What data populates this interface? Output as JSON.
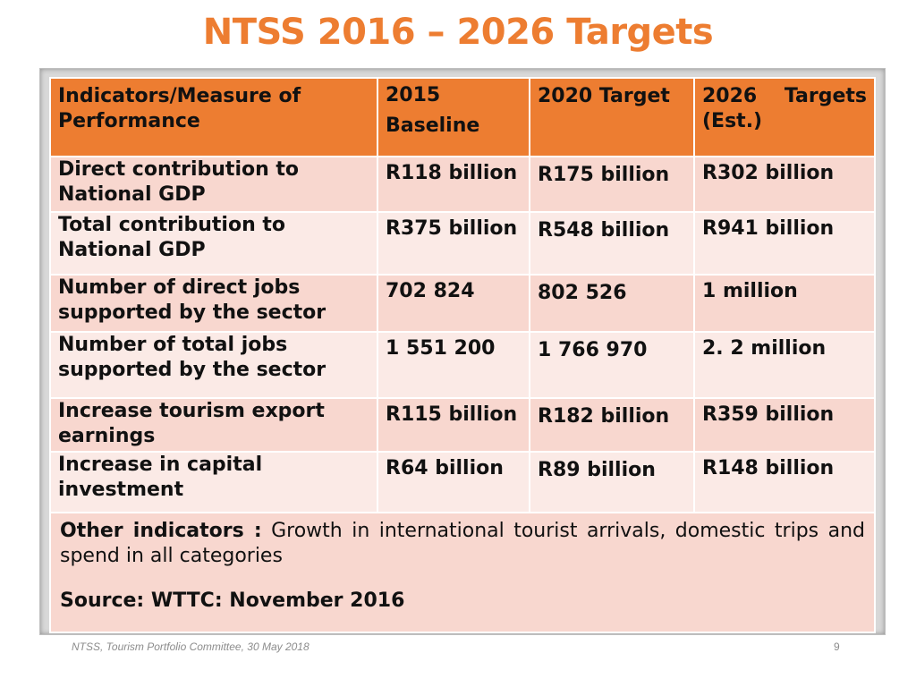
{
  "title": "NTSS 2016 – 2026 Targets",
  "colors": {
    "title": "#ED7D31",
    "header_bg": "#ED7D31",
    "row_dark": "#F8D7CF",
    "row_light": "#FBEAE6"
  },
  "table": {
    "headers": {
      "indicator": "Indicators/Measure of Performance",
      "baseline_line1": "2015",
      "baseline_line2": "Baseline",
      "target_2020": "2020 Target",
      "target_2026_line1": "2026 Targets",
      "target_2026_line2": "(Est.)"
    },
    "rows": [
      {
        "indicator": "Direct contribution to National GDP",
        "baseline": "R118 billion",
        "target_2020": "R175 billion",
        "target_2026": "R302 billion"
      },
      {
        "indicator": "Total contribution to National GDP",
        "baseline": "R375 billion",
        "target_2020": "R548 billion",
        "target_2026": "R941 billion"
      },
      {
        "indicator": "Number of direct jobs supported by the sector",
        "baseline": "702 824",
        "target_2020": "802 526",
        "target_2026": "1 million"
      },
      {
        "indicator": "Number of total jobs supported by the sector",
        "baseline": "1 551 200",
        "target_2020": "1 766 970",
        "target_2026": "2. 2 million"
      },
      {
        "indicator": "Increase tourism export earnings",
        "baseline": "R115 billion",
        "target_2020": "R182 billion",
        "target_2026": "R359 billion"
      },
      {
        "indicator": "Increase in capital investment",
        "baseline": "R64 billion",
        "target_2020": "R89 billion",
        "target_2026": "R148 billion"
      }
    ],
    "other": {
      "label": "Other indicators :",
      "text": " Growth in international tourist arrivals, domestic trips and spend in all categories"
    },
    "source": "Source: WTTC: November 2016"
  },
  "footer": {
    "note": "NTSS, Tourism Portfolio Committee, 30 May 2018",
    "page_number": "9"
  }
}
